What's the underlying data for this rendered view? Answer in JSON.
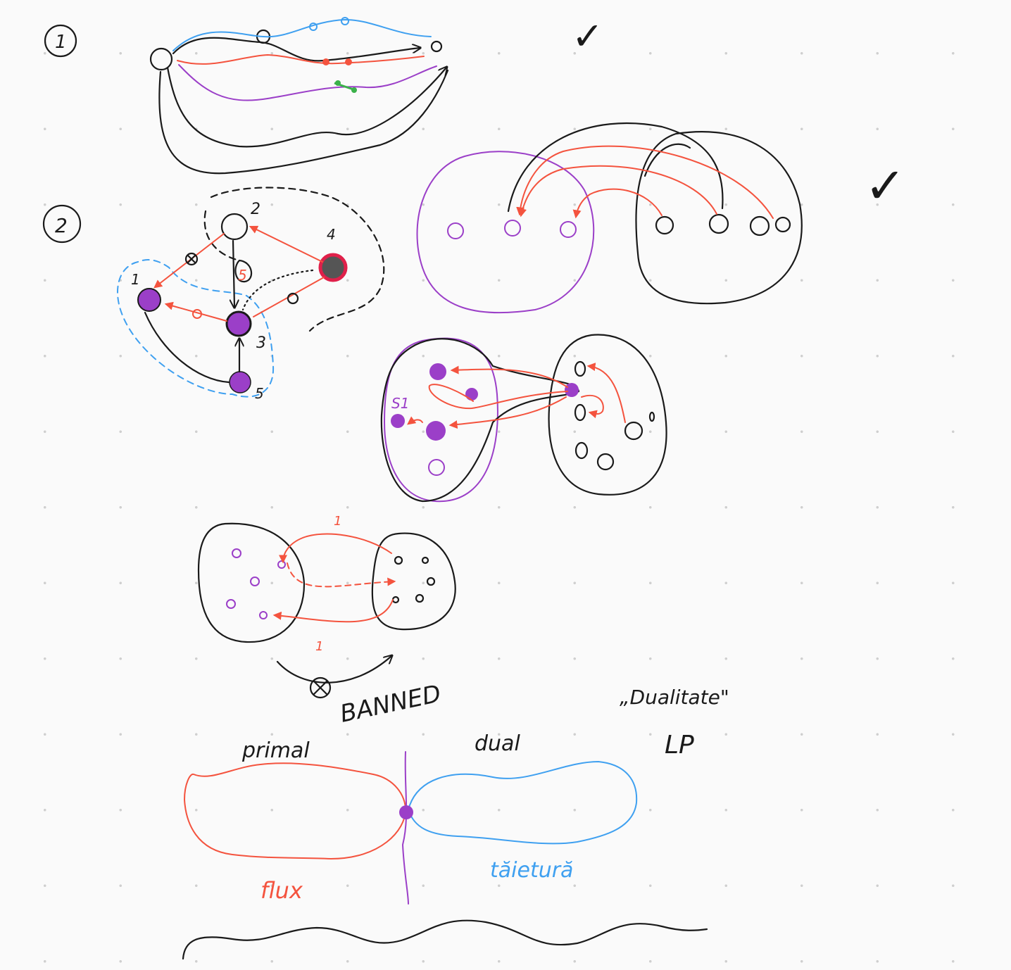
{
  "labels": {
    "step_one": "1",
    "step_two": "2",
    "node_1": "1",
    "node_2": "2",
    "node_3": "3",
    "node_4": "4",
    "node_5": "5",
    "capacity_5": "5",
    "s1": "S1",
    "cap_top": "1",
    "cap_bottom": "1",
    "banned": "BANNED",
    "dualitate": "„Dualitate\"",
    "lp": "LP",
    "primal": "primal",
    "dual": "dual",
    "flux": "flux",
    "taietura": "tăietură",
    "check_top": "✓",
    "check_right": "✓"
  },
  "colors": {
    "ink": "#1a1a1a",
    "red": "#f4533e",
    "purple": "#9b3fc8",
    "blue": "#3fa0f0",
    "green": "#3bb14a",
    "magenta": "#e0204a"
  }
}
